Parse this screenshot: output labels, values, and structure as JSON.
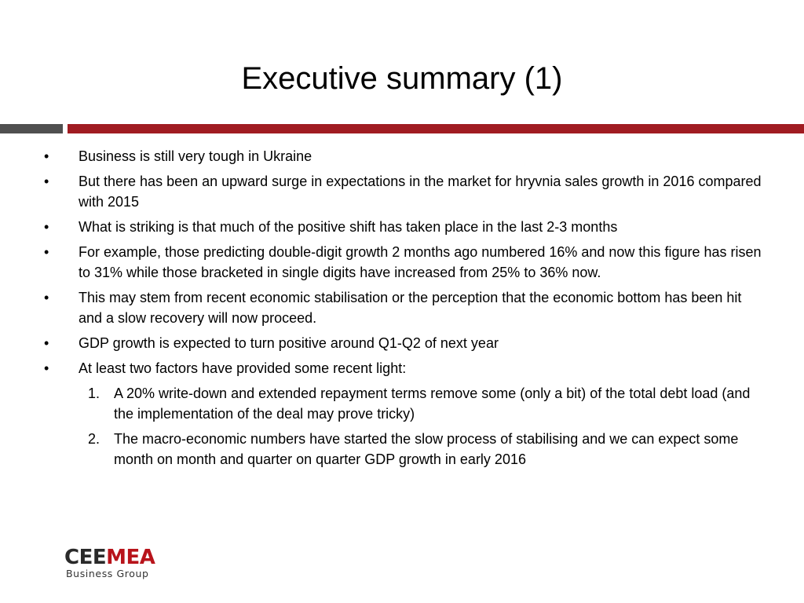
{
  "slide": {
    "title": "Executive summary (1)",
    "bullet_glyph": "•",
    "bullets": [
      "Business is still very tough in Ukraine",
      "But there has been an upward surge in  expectations in  the market for hryvnia sales growth in 2016 compared with 2015",
      "What is striking is that much of the positive shift has taken place in the last 2-3 months",
      "For example, those predicting double-digit growth 2 months ago numbered 16% and now this figure has risen to 31% while those bracketed in single digits have increased from 25% to 36% now.",
      "This may stem from recent economic stabilisation or the perception that the economic bottom has been hit and a slow recovery will now proceed.",
      "GDP growth is expected to turn positive around Q1-Q2 of next year",
      "At least two factors have provided some recent light:"
    ],
    "numbered": [
      {
        "marker": "1.",
        "text": "A 20% write-down and extended repayment terms remove some (only a bit) of the total debt load (and the implementation of the deal may prove tricky)"
      },
      {
        "marker": "2.",
        "text": "The macro-economic numbers have started the slow process of stabilising and we can expect some month on month and quarter on quarter GDP growth in early 2016"
      }
    ]
  },
  "logo": {
    "part1": "CEE",
    "part2": "MEA",
    "subtitle": "Business Group"
  },
  "colors": {
    "accent_red": "#a01c22",
    "divider_grey": "#505050",
    "logo_red": "#b8141b"
  }
}
